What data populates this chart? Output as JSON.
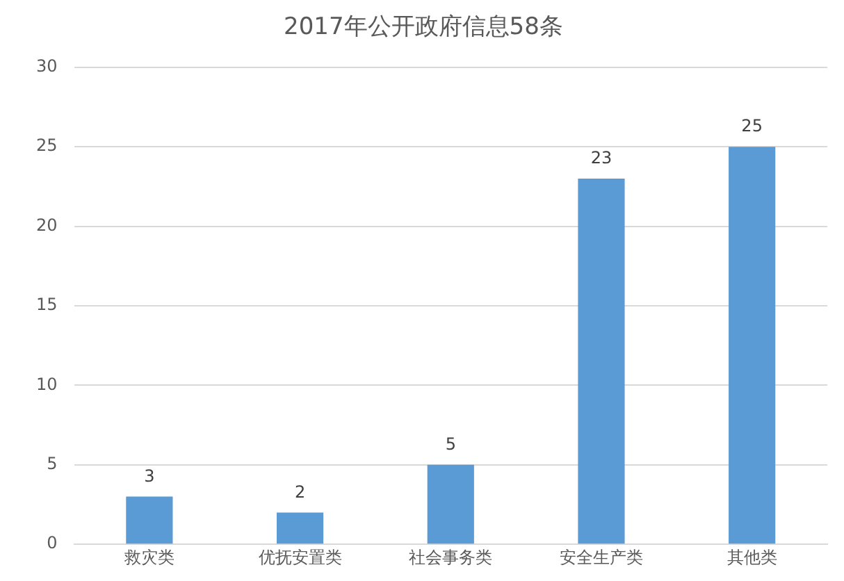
{
  "chart_data": {
    "type": "bar",
    "title": "2017年公开政府信息58条",
    "categories": [
      "救灾类",
      "优抚安置类",
      "社会事务类",
      "安全生产类",
      "其他类"
    ],
    "values": [
      3,
      2,
      5,
      23,
      25
    ],
    "color": "#5b9bd5",
    "ylim": [
      0,
      30
    ],
    "yticks": [
      0,
      5,
      10,
      15,
      20,
      25,
      30
    ],
    "grid": "y",
    "data_labels": true,
    "legend": false
  }
}
